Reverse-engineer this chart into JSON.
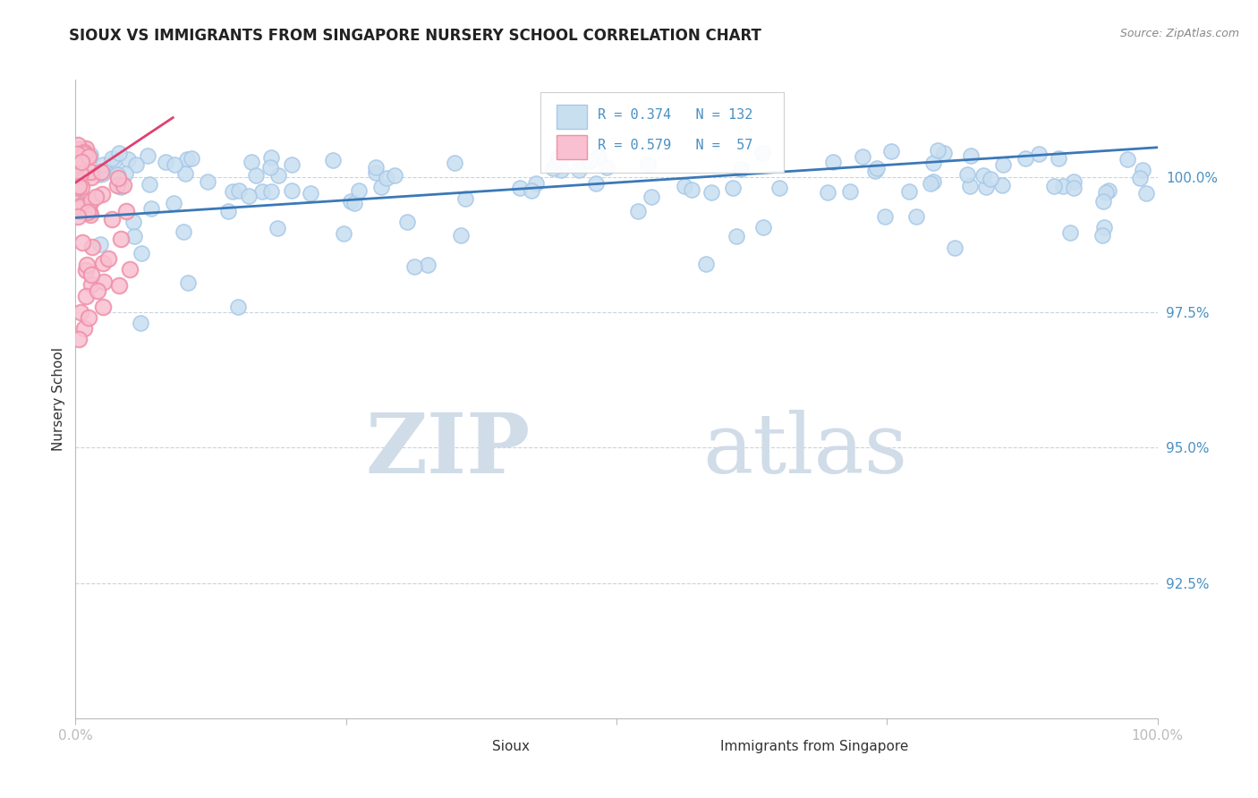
{
  "title": "SIOUX VS IMMIGRANTS FROM SINGAPORE NURSERY SCHOOL CORRELATION CHART",
  "source_text": "Source: ZipAtlas.com",
  "ylabel": "Nursery School",
  "legend_blue_label": "Sioux",
  "legend_pink_label": "Immigrants from Singapore",
  "legend_R_blue": "R = 0.374",
  "legend_N_blue": "N = 132",
  "legend_R_pink": "R = 0.579",
  "legend_N_pink": "N =  57",
  "blue_color": "#a8c8e8",
  "blue_fill": "#c8dff0",
  "pink_color": "#f090a8",
  "pink_fill": "#f8c0d0",
  "trend_blue_color": "#3a78b8",
  "trend_pink_color": "#e04070",
  "watermark_zip": "ZIP",
  "watermark_atlas": "atlas",
  "watermark_color": "#d0dce8",
  "title_fontsize": 12,
  "axis_color": "#4a90c4",
  "xmin": 0.0,
  "xmax": 100.0,
  "ymin": 90.0,
  "ymax": 101.8,
  "bg_color": "#ffffff",
  "grid_color": "#c8d4e0",
  "figsize": [
    14.06,
    8.92
  ],
  "dpi": 100,
  "trend_blue_x0": 0.0,
  "trend_blue_y0": 99.25,
  "trend_blue_x1": 100.0,
  "trend_blue_y1": 100.55,
  "trend_pink_x0": 0.0,
  "trend_pink_y0": 99.9,
  "trend_pink_x1": 9.0,
  "trend_pink_y1": 101.1
}
